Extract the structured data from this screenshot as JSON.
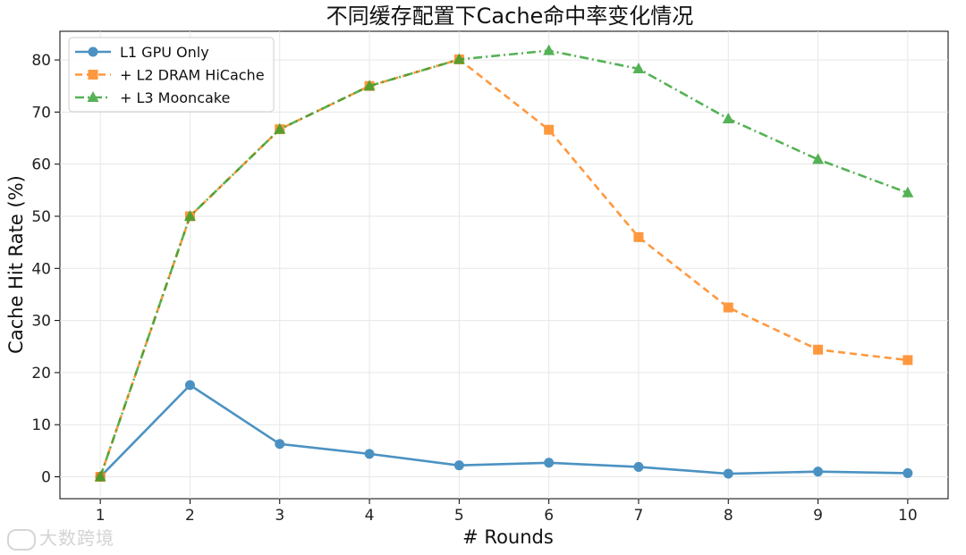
{
  "chart_data": {
    "type": "line",
    "title": "不同缓存配置下Cache命中率变化情况",
    "xlabel": "# Rounds",
    "ylabel": "Cache Hit Rate (%)",
    "x": [
      1,
      2,
      3,
      4,
      5,
      6,
      7,
      8,
      9,
      10
    ],
    "xlim": [
      0.55,
      10.45
    ],
    "ylim": [
      -4.2,
      85.5
    ],
    "yticks": [
      0,
      10,
      20,
      30,
      40,
      50,
      60,
      70,
      80
    ],
    "grid": true,
    "legend_position": "top-left",
    "series": [
      {
        "name": "L1 GPU Only",
        "color": "#1f77b4",
        "marker": "circle",
        "linestyle": "solid",
        "values": [
          0,
          17.6,
          6.3,
          4.4,
          2.2,
          2.7,
          1.9,
          0.6,
          1.0,
          0.7
        ]
      },
      {
        "name": "+ L2 DRAM HiCache",
        "color": "#ff7f0e",
        "marker": "square",
        "linestyle": "dashed",
        "values": [
          0,
          50.0,
          66.7,
          75.0,
          80.1,
          66.6,
          46.0,
          32.5,
          24.4,
          22.4
        ]
      },
      {
        "name": "+ L3 Mooncake",
        "color": "#2ca02c",
        "marker": "triangle",
        "linestyle": "dashdot",
        "values": [
          0,
          50.0,
          66.7,
          75.0,
          80.1,
          81.8,
          78.3,
          68.7,
          60.9,
          54.5
        ]
      }
    ]
  },
  "watermark": "大数跨境"
}
